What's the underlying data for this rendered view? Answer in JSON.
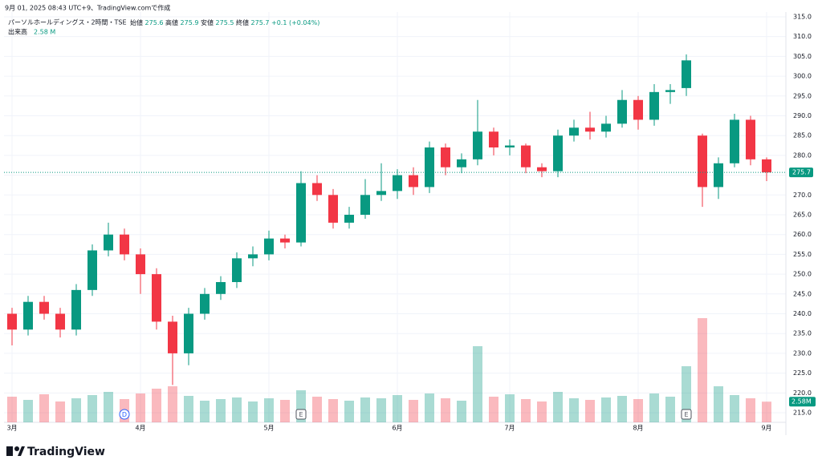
{
  "header": {
    "caption": "9月 01, 2025 08:43 UTC+9、TradingView.comで作成",
    "brand": "TradingView"
  },
  "chart_data": {
    "type": "candlestick",
    "symbol": "パーソルホールディングス・2時間・TSE",
    "ohlc_legend": {
      "open_label": "始値",
      "open": 275.6,
      "high_label": "高値",
      "high": 275.9,
      "low_label": "安値",
      "low": 275.5,
      "close_label": "終値",
      "close": 275.7,
      "change": "+0.1 (+0.04%)"
    },
    "volume_legend": {
      "label": "出来高",
      "value": "2.58 M"
    },
    "categories": [
      "3月",
      null,
      null,
      null,
      null,
      null,
      null,
      null,
      "4月",
      null,
      null,
      null,
      null,
      null,
      null,
      null,
      "5月",
      null,
      null,
      null,
      null,
      null,
      null,
      null,
      "6月",
      null,
      null,
      null,
      null,
      null,
      null,
      "7月",
      null,
      null,
      null,
      null,
      null,
      null,
      null,
      "8月",
      null,
      null,
      null,
      null,
      null,
      null,
      null,
      "9月"
    ],
    "open": [
      240,
      236,
      243,
      240,
      236,
      246,
      256,
      260,
      255,
      250,
      238,
      230,
      240,
      245,
      248,
      254,
      255,
      259,
      258,
      273,
      270,
      263,
      265,
      270,
      271,
      275,
      272,
      282,
      277,
      279,
      286,
      282,
      282.5,
      277,
      276,
      285,
      287,
      286,
      288,
      294,
      289,
      296,
      297,
      285,
      272,
      278,
      289,
      279
    ],
    "high": [
      241.5,
      244.5,
      244.5,
      241.5,
      247.5,
      257.5,
      263,
      261.5,
      256.5,
      251.5,
      239.5,
      241.5,
      246.5,
      249.5,
      255.5,
      257,
      261,
      260,
      276,
      275,
      271.5,
      267,
      274,
      278,
      276.5,
      277,
      283.5,
      283,
      280.5,
      294,
      287,
      284,
      283,
      278,
      286.5,
      289,
      291,
      290,
      296.5,
      295,
      298,
      298,
      305.5,
      285.5,
      279.5,
      290.5,
      290,
      279.5
    ],
    "low": [
      232,
      234.5,
      238.5,
      234,
      234.5,
      244.5,
      254.5,
      253.5,
      245,
      236,
      222,
      227,
      238.5,
      243.5,
      246.5,
      252,
      253.5,
      256.5,
      257,
      268.5,
      261.5,
      261.5,
      264,
      268.5,
      269,
      270,
      270.5,
      275,
      275.5,
      277.5,
      280,
      280,
      275.5,
      274.5,
      274.5,
      283.5,
      284,
      284.5,
      287,
      286.5,
      287.5,
      293,
      295,
      267,
      269,
      277,
      277.5,
      273.5
    ],
    "close": [
      236,
      243,
      240,
      236,
      246,
      256,
      260,
      255,
      250,
      238,
      230,
      240,
      245,
      248,
      254,
      255,
      259,
      258,
      273,
      270,
      263,
      265,
      270,
      271,
      275,
      272,
      282,
      277,
      279,
      286,
      282,
      282.5,
      277,
      276,
      285,
      287,
      286,
      288,
      294,
      289,
      296,
      296.5,
      304,
      272,
      278,
      289,
      279,
      275.7
    ],
    "volumes": [
      3.2,
      2.8,
      3.5,
      2.6,
      3.0,
      3.4,
      3.8,
      2.9,
      3.6,
      4.2,
      4.5,
      3.3,
      2.7,
      2.9,
      3.1,
      2.6,
      3.0,
      2.8,
      4.0,
      3.2,
      2.9,
      2.7,
      3.1,
      3.0,
      3.4,
      2.8,
      3.6,
      3.0,
      2.7,
      9.5,
      3.2,
      3.5,
      2.9,
      2.6,
      3.8,
      3.0,
      2.8,
      3.1,
      3.3,
      2.9,
      3.6,
      3.2,
      7.0,
      13.0,
      4.5,
      3.4,
      3.0,
      2.58
    ],
    "volume_tag": {
      "value": 2.58,
      "label": "2.58M"
    },
    "volume_ylim": [
      0,
      20
    ],
    "up_color": "#089981",
    "down_color": "#f23645",
    "ylim": [
      213,
      317
    ],
    "yticks": [
      {
        "value": 215,
        "label": "215.0"
      },
      {
        "value": 220,
        "label": "220.0"
      },
      {
        "value": 225,
        "label": "225.0"
      },
      {
        "value": 230,
        "label": "230.0"
      },
      {
        "value": 235,
        "label": "235.0"
      },
      {
        "value": 240,
        "label": "240.0"
      },
      {
        "value": 245,
        "label": "245.0"
      },
      {
        "value": 250,
        "label": "250.0"
      },
      {
        "value": 255,
        "label": "255.0"
      },
      {
        "value": 260,
        "label": "260.0"
      },
      {
        "value": 265,
        "label": "265.0"
      },
      {
        "value": 270,
        "label": "270.0"
      },
      {
        "value": 275,
        "label": "275.0"
      },
      {
        "value": 280,
        "label": "280.0"
      },
      {
        "value": 285,
        "label": "285.0"
      },
      {
        "value": 290,
        "label": "290.0"
      },
      {
        "value": 295,
        "label": "295.0"
      },
      {
        "value": 300,
        "label": "300.0"
      },
      {
        "value": 305,
        "label": "305.0"
      },
      {
        "value": 310,
        "label": "310.0"
      },
      {
        "value": 315,
        "label": "315.0"
      }
    ],
    "last_price": 275.7,
    "events": [
      {
        "index": 7,
        "label": "D"
      },
      {
        "index": 18,
        "label": "E"
      },
      {
        "index": 42,
        "label": "E"
      }
    ],
    "grid": true
  }
}
